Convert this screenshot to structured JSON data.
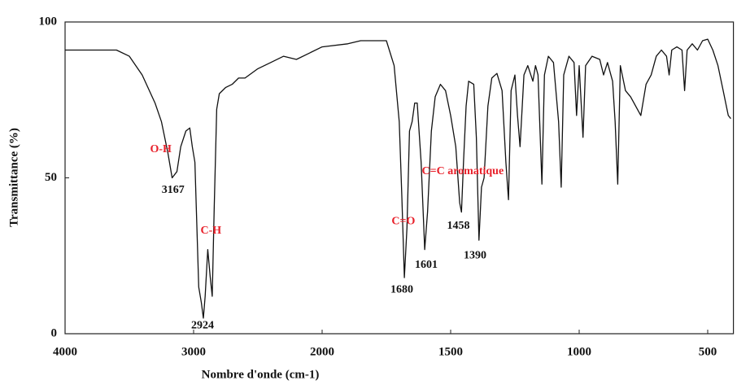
{
  "chart_data": {
    "type": "line",
    "xlabel": "Nombre d'onde (cm-1)",
    "ylabel": "Transmittance (%)",
    "color": "#111111",
    "xlim": [
      4000,
      400
    ],
    "xticks": [
      4000,
      3000,
      2000,
      1500,
      1000,
      500
    ],
    "ylim": [
      0,
      100
    ],
    "yticks": [
      0,
      50,
      100
    ],
    "x": [
      4000,
      3800,
      3600,
      3500,
      3400,
      3300,
      3250,
      3200,
      3167,
      3130,
      3100,
      3060,
      3030,
      3010,
      2990,
      2960,
      2940,
      2924,
      2910,
      2890,
      2870,
      2855,
      2840,
      2820,
      2800,
      2750,
      2700,
      2650,
      2600,
      2500,
      2400,
      2300,
      2200,
      2000,
      1900,
      1850,
      1800,
      1750,
      1720,
      1700,
      1690,
      1680,
      1670,
      1660,
      1650,
      1640,
      1630,
      1615,
      1601,
      1590,
      1575,
      1560,
      1540,
      1520,
      1500,
      1480,
      1465,
      1458,
      1450,
      1440,
      1430,
      1410,
      1400,
      1390,
      1380,
      1370,
      1355,
      1340,
      1320,
      1300,
      1285,
      1275,
      1265,
      1250,
      1240,
      1230,
      1215,
      1200,
      1180,
      1170,
      1160,
      1145,
      1135,
      1120,
      1100,
      1080,
      1070,
      1060,
      1040,
      1020,
      1010,
      1000,
      985,
      975,
      950,
      920,
      905,
      890,
      870,
      860,
      850,
      840,
      820,
      800,
      780,
      760,
      740,
      720,
      700,
      680,
      660,
      650,
      640,
      620,
      600,
      590,
      580,
      560,
      540,
      520,
      500,
      480,
      460,
      440,
      420,
      410
    ],
    "values": [
      91,
      91,
      91,
      89,
      83,
      74,
      68,
      58,
      50,
      52,
      60,
      65,
      66,
      60,
      55,
      15,
      10,
      5,
      12,
      27,
      18,
      12,
      40,
      72,
      77,
      79,
      80,
      82,
      82,
      85,
      87,
      89,
      88,
      92,
      93,
      94,
      94,
      94,
      86,
      68,
      44,
      18,
      34,
      65,
      68,
      74,
      74,
      55,
      27,
      39,
      65,
      76,
      80,
      78,
      70,
      60,
      42,
      39,
      55,
      73,
      81,
      80,
      63,
      30,
      47,
      50,
      73,
      82,
      83.5,
      78,
      55,
      43,
      78,
      83,
      70,
      60,
      83,
      86,
      81,
      86,
      83,
      48,
      83,
      89,
      87,
      68,
      47,
      83,
      89,
      87,
      70,
      86,
      63,
      86,
      89,
      88,
      83,
      87,
      81,
      68,
      48,
      86,
      78,
      76,
      73,
      70,
      80,
      83,
      89,
      91,
      89,
      83,
      91,
      92,
      91,
      78,
      91,
      93,
      91,
      94,
      94.5,
      91,
      86,
      78,
      70,
      69
    ],
    "annotations": [
      {
        "text": "O-H",
        "x": 3255,
        "y": 59,
        "color": "#e8202a"
      },
      {
        "text": "3167",
        "x": 3160,
        "y": 46,
        "color": "#111111"
      },
      {
        "text": "C-H",
        "x": 2865,
        "y": 33,
        "color": "#e8202a"
      },
      {
        "text": "2924",
        "x": 2930,
        "y": 2.6,
        "color": "#111111"
      },
      {
        "text": "C=O",
        "x": 1684,
        "y": 36,
        "color": "#e8202a"
      },
      {
        "text": "1680",
        "x": 1690,
        "y": 14,
        "color": "#111111"
      },
      {
        "text": "1601",
        "x": 1595,
        "y": 22,
        "color": "#111111"
      },
      {
        "text": "C=C aromatique",
        "x": 1453,
        "y": 52,
        "color": "#e8202a"
      },
      {
        "text": "1458",
        "x": 1470,
        "y": 34.5,
        "color": "#111111"
      },
      {
        "text": "1390",
        "x": 1405,
        "y": 25,
        "color": "#111111"
      }
    ]
  }
}
